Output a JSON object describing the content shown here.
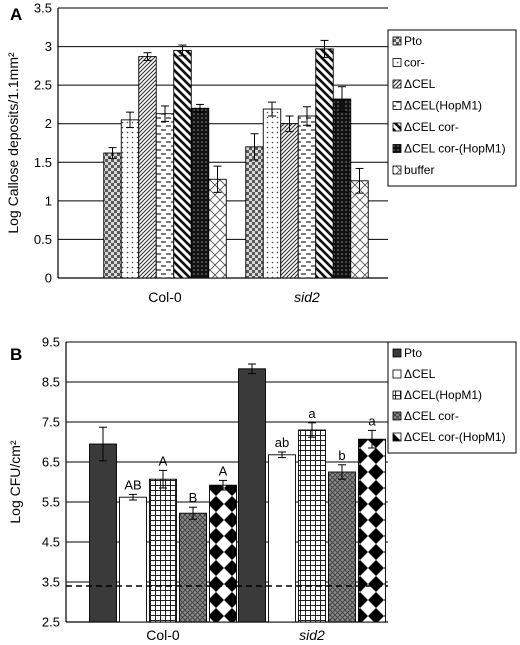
{
  "figure": {
    "panels": [
      {
        "letter": "A",
        "chart_data": {
          "type": "bar",
          "ylabel": "Log Callose deposits/1.1mm²",
          "ylim": [
            0,
            3.5
          ],
          "yticks": [
            "0",
            "0.5",
            "1",
            "1.5",
            "2",
            "2.5",
            "3",
            "3.5"
          ],
          "ytick_values": [
            0,
            0.5,
            1,
            1.5,
            2,
            2.5,
            3,
            3.5
          ],
          "categories": [
            "Col-0",
            "sid2"
          ],
          "categories_italic": [
            false,
            true
          ],
          "grid": true,
          "legend_position": "right",
          "series": [
            {
              "name": "Pto",
              "pattern": "checker",
              "values": [
                1.62,
                1.7
              ],
              "errors": [
                0.07,
                0.17
              ]
            },
            {
              "name": "cor-",
              "pattern": "dots",
              "values": [
                2.05,
                2.19
              ],
              "errors": [
                0.1,
                0.09
              ]
            },
            {
              "name": "ΔCEL",
              "pattern": "diag-dense",
              "values": [
                2.87,
                2.0
              ],
              "errors": [
                0.05,
                0.1
              ]
            },
            {
              "name": "ΔCEL(HopM1)",
              "pattern": "hdash",
              "values": [
                2.13,
                2.1
              ],
              "errors": [
                0.1,
                0.12
              ]
            },
            {
              "name": "ΔCEL cor-",
              "pattern": "diag-bold",
              "values": [
                2.95,
                2.97
              ],
              "errors": [
                0.07,
                0.11
              ]
            },
            {
              "name": "ΔCEL cor-(HopM1)",
              "pattern": "black-dots",
              "values": [
                2.2,
                2.32
              ],
              "errors": [
                0.05,
                0.16
              ]
            },
            {
              "name": "buffer",
              "pattern": "light-diag",
              "values": [
                1.28,
                1.26
              ],
              "errors": [
                0.17,
                0.16
              ]
            }
          ]
        }
      },
      {
        "letter": "B",
        "chart_data": {
          "type": "bar",
          "ylabel": "Log CFU/cm²",
          "ylim": [
            2.5,
            9.5
          ],
          "yticks": [
            "2.5",
            "3.5",
            "4.5",
            "5.5",
            "6.5",
            "7.5",
            "8.5",
            "9.5"
          ],
          "ytick_values": [
            2.5,
            3.5,
            4.5,
            5.5,
            6.5,
            7.5,
            8.5,
            9.5
          ],
          "categories": [
            "Col-0",
            "sid2"
          ],
          "categories_italic": [
            false,
            true
          ],
          "grid": true,
          "legend_position": "right",
          "reference_line": 3.4,
          "series": [
            {
              "name": "Pto",
              "pattern": "solid-dark",
              "values": [
                6.95,
                8.83
              ],
              "errors": [
                0.42,
                0.12
              ],
              "labels": [
                "",
                ""
              ]
            },
            {
              "name": "ΔCEL",
              "pattern": "white",
              "values": [
                5.62,
                6.68
              ],
              "errors": [
                0.07,
                0.07
              ],
              "labels": [
                "AB",
                "ab"
              ]
            },
            {
              "name": "ΔCEL(HopM1)",
              "pattern": "grid",
              "values": [
                6.07,
                7.3
              ],
              "errors": [
                0.22,
                0.18
              ],
              "labels": [
                "A",
                "a"
              ]
            },
            {
              "name": "ΔCEL cor-",
              "pattern": "cross",
              "values": [
                5.22,
                6.25
              ],
              "errors": [
                0.15,
                0.18
              ],
              "labels": [
                "B",
                "b"
              ]
            },
            {
              "name": "ΔCEL cor-(HopM1)",
              "pattern": "diamond",
              "values": [
                5.92,
                7.07
              ],
              "errors": [
                0.12,
                0.22
              ],
              "labels": [
                "A",
                "a"
              ]
            }
          ]
        }
      }
    ]
  }
}
